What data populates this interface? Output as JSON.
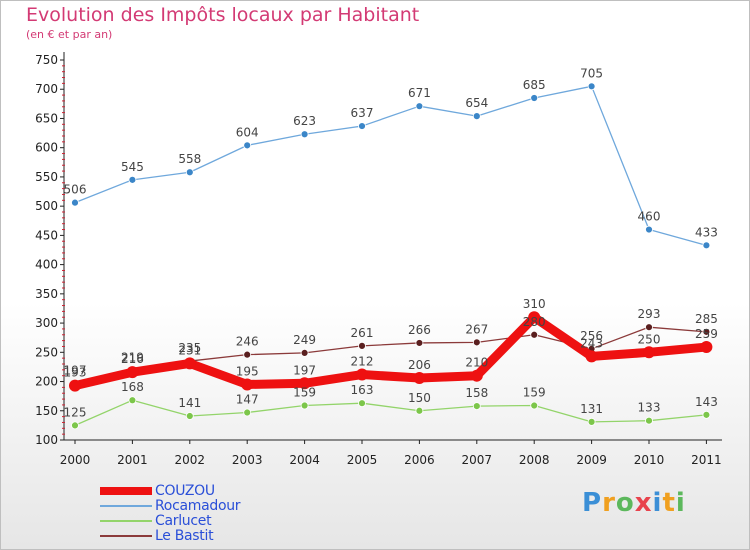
{
  "chart_data": {
    "type": "line",
    "title": "Evolution des Impôts locaux par Habitant",
    "subtitle": "(en € et par an)",
    "categories": [
      "2000",
      "2001",
      "2002",
      "2003",
      "2004",
      "2005",
      "2006",
      "2007",
      "2008",
      "2009",
      "2010",
      "2011"
    ],
    "ylim": [
      100,
      750
    ],
    "yticks": [
      100,
      150,
      200,
      250,
      300,
      350,
      400,
      450,
      500,
      550,
      600,
      650,
      700,
      750
    ],
    "grid": false,
    "legend_position": "bottom-left",
    "series": [
      {
        "name": "COUZOU",
        "color": "#ee1111",
        "values": [
          193,
          216,
          231,
          195,
          197,
          212,
          206,
          210,
          310,
          243,
          250,
          259
        ]
      },
      {
        "name": "Rocamadour",
        "color": "#6fa8dc",
        "values": [
          506,
          545,
          558,
          604,
          623,
          637,
          671,
          654,
          685,
          705,
          460,
          433
        ]
      },
      {
        "name": "Carlucet",
        "color": "#93d46a",
        "values": [
          125,
          168,
          141,
          147,
          159,
          163,
          150,
          158,
          159,
          131,
          133,
          143
        ]
      },
      {
        "name": "Le Bastit",
        "color": "#8b3a3a",
        "values": [
          197,
          219,
          235,
          246,
          249,
          261,
          266,
          267,
          280,
          256,
          293,
          285
        ]
      }
    ]
  },
  "logo": {
    "text": "Proxiti",
    "p": "P",
    "r": "r",
    "o": "o",
    "x": "x",
    "i": "i",
    "t": "t",
    "i2": "i"
  }
}
